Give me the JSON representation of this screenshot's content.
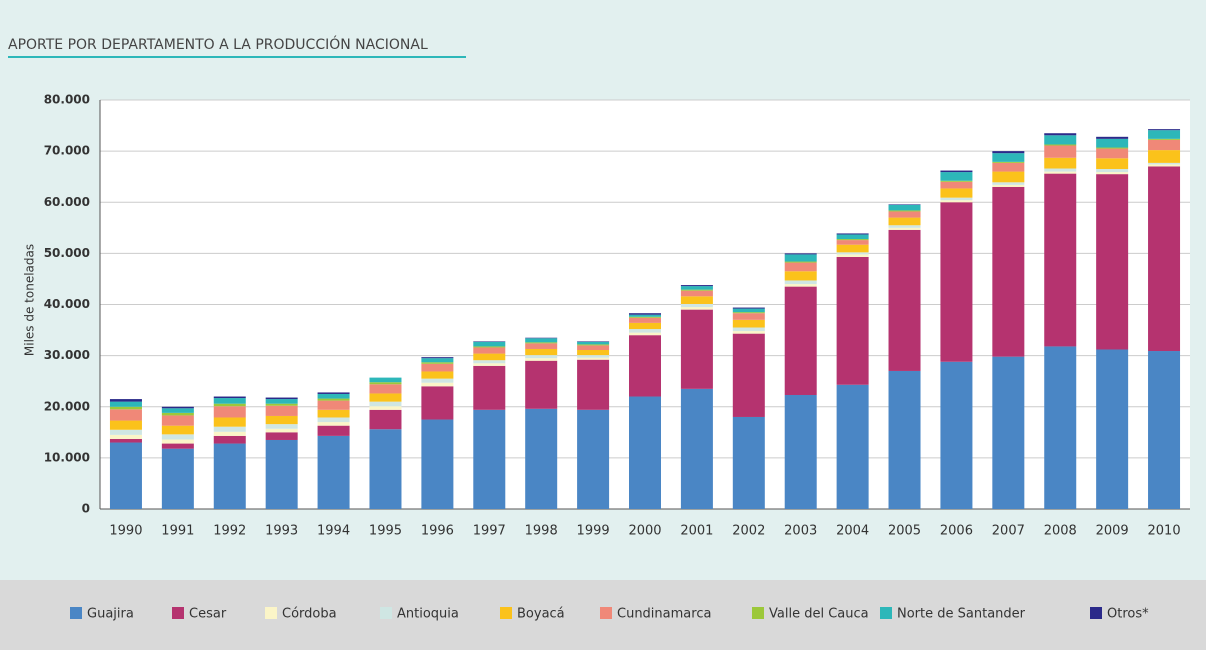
{
  "chart_data": {
    "type": "stacked_bar",
    "title": "APORTE POR DEPARTAMENTO A LA PRODUCCIÓN NACIONAL",
    "y_label": "Miles de toneladas",
    "categories": [
      "1990",
      "1991",
      "1992",
      "1993",
      "1994",
      "1995",
      "1996",
      "1997",
      "1998",
      "1999",
      "2000",
      "2001",
      "2002",
      "2003",
      "2004",
      "2005",
      "2006",
      "2007",
      "2008",
      "2009",
      "2010"
    ],
    "series": [
      {
        "name": "Guajira",
        "color": "#4a86c5",
        "values": [
          13000,
          11800,
          12800,
          13500,
          14300,
          15600,
          17500,
          19400,
          19600,
          19400,
          22000,
          23500,
          18000,
          22300,
          24300,
          27000,
          28800,
          29800,
          31800,
          31200,
          30900
        ]
      },
      {
        "name": "Cesar",
        "color": "#b5336f",
        "values": [
          700,
          1000,
          1500,
          1500,
          2000,
          3800,
          6500,
          8600,
          9400,
          9800,
          12000,
          15500,
          16300,
          21200,
          25000,
          27600,
          31200,
          33200,
          33800,
          34300,
          36100
        ]
      },
      {
        "name": "Córdoba",
        "color": "#fbf5c8",
        "values": [
          800,
          800,
          800,
          700,
          700,
          700,
          700,
          500,
          500,
          400,
          500,
          500,
          500,
          500,
          500,
          400,
          400,
          400,
          400,
          400,
          400
        ]
      },
      {
        "name": "Antioquia",
        "color": "#cfe6e3",
        "values": [
          1000,
          1000,
          1000,
          900,
          900,
          900,
          800,
          600,
          600,
          500,
          700,
          600,
          700,
          700,
          400,
          500,
          500,
          500,
          600,
          600,
          300
        ]
      },
      {
        "name": "Boyacá",
        "color": "#fbc21b",
        "values": [
          1800,
          1700,
          1800,
          1600,
          1500,
          1600,
          1400,
          1300,
          1200,
          1000,
          1200,
          1500,
          1500,
          1800,
          1500,
          1500,
          1800,
          2100,
          2100,
          2100,
          2500
        ]
      },
      {
        "name": "Cundinamarca",
        "color": "#f08878",
        "values": [
          2200,
          2000,
          2200,
          2000,
          1800,
          1800,
          1500,
          1200,
          1100,
          900,
          1000,
          1100,
          1300,
          1700,
          900,
          1200,
          1300,
          1700,
          2400,
          1900,
          2000
        ]
      },
      {
        "name": "Valle del Cauca",
        "color": "#9cc83a",
        "values": [
          500,
          500,
          500,
          400,
          400,
          400,
          300,
          200,
          200,
          200,
          200,
          200,
          200,
          200,
          200,
          200,
          200,
          200,
          200,
          200,
          200
        ]
      },
      {
        "name": "Norte de Santander",
        "color": "#2db7b9",
        "values": [
          1000,
          900,
          1100,
          900,
          900,
          900,
          800,
          900,
          800,
          500,
          400,
          700,
          700,
          1400,
          900,
          1100,
          1700,
          1700,
          1800,
          1700,
          1700
        ]
      },
      {
        "name": "Otros*",
        "color": "#2b2a8a",
        "values": [
          500,
          300,
          300,
          300,
          300,
          0,
          200,
          100,
          100,
          100,
          300,
          200,
          200,
          200,
          200,
          100,
          300,
          400,
          400,
          400,
          200
        ]
      }
    ],
    "ylim": [
      0,
      80000
    ],
    "yticks": [
      0,
      {
        "value": 10000,
        "label": "10.000"
      },
      {
        "value": 20000,
        "label": "20.000"
      },
      {
        "value": 30000,
        "label": "30.000"
      },
      {
        "value": 40000,
        "label": "40.000"
      },
      {
        "value": 50000,
        "label": "50.000"
      },
      {
        "value": 60000,
        "label": "60.000"
      },
      {
        "value": 70000,
        "label": "70.000"
      },
      {
        "value": 80000,
        "label": "80.000"
      }
    ],
    "grid": true,
    "legend": "bottom"
  }
}
